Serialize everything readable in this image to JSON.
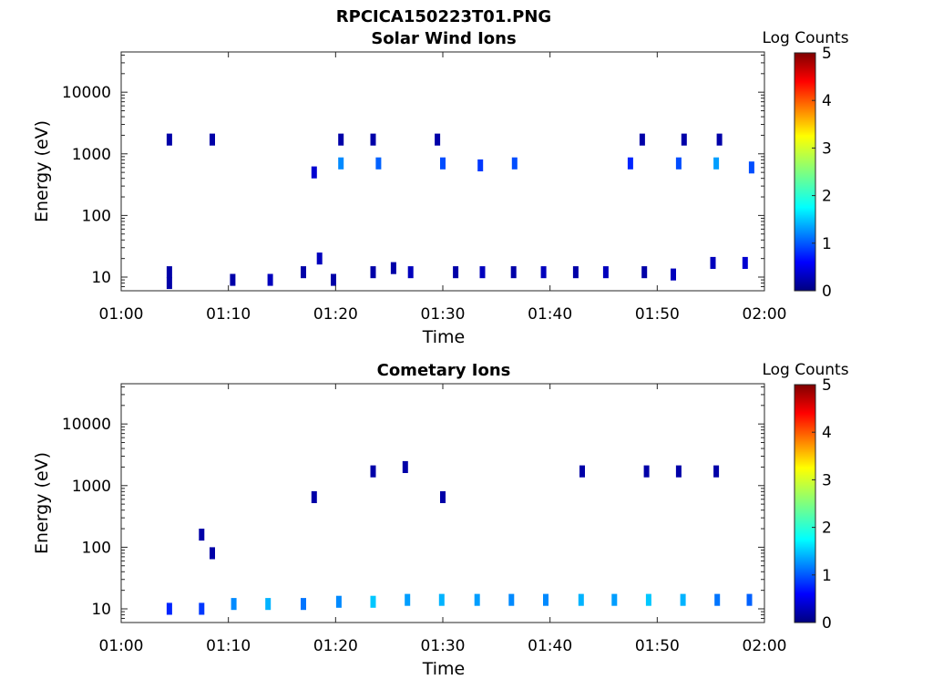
{
  "figure_title": "RPCICA150223T01.PNG",
  "chart_data": [
    {
      "type": "heatmap",
      "title": "Solar Wind Ions",
      "xlabel": "Time",
      "ylabel": "Energy (eV)",
      "xlim": [
        "01:00",
        "02:00"
      ],
      "xtick_labels": [
        "01:00",
        "01:10",
        "01:20",
        "01:30",
        "01:40",
        "01:50",
        "02:00"
      ],
      "ylim": [
        6,
        45000
      ],
      "yscale": "log",
      "ytick_values": [
        10,
        100,
        1000,
        10000
      ],
      "ytick_labels": [
        "10",
        "100",
        "1000",
        "10000"
      ],
      "colorbar": {
        "label": "Log Counts",
        "range": [
          0,
          5
        ],
        "tick_labels": [
          "0",
          "1",
          "2",
          "3",
          "4",
          "5"
        ],
        "colormap": "jet"
      },
      "cells": [
        {
          "t": 4.5,
          "e": 1700,
          "v": 0.2
        },
        {
          "t": 8.5,
          "e": 1700,
          "v": 0.2
        },
        {
          "t": 4.5,
          "e": 12,
          "v": 0.2
        },
        {
          "t": 4.5,
          "e": 8,
          "v": 0.2
        },
        {
          "t": 10.4,
          "e": 9,
          "v": 0.2
        },
        {
          "t": 13.9,
          "e": 9,
          "v": 0.3
        },
        {
          "t": 17.0,
          "e": 12,
          "v": 0.2
        },
        {
          "t": 18.5,
          "e": 20,
          "v": 0.3
        },
        {
          "t": 19.8,
          "e": 9,
          "v": 0.2
        },
        {
          "t": 23.5,
          "e": 12,
          "v": 0.2
        },
        {
          "t": 25.4,
          "e": 14,
          "v": 0.2
        },
        {
          "t": 27.0,
          "e": 12,
          "v": 0.3
        },
        {
          "t": 31.2,
          "e": 12,
          "v": 0.2
        },
        {
          "t": 33.7,
          "e": 12,
          "v": 0.3
        },
        {
          "t": 36.6,
          "e": 12,
          "v": 0.2
        },
        {
          "t": 39.4,
          "e": 12,
          "v": 0.3
        },
        {
          "t": 42.4,
          "e": 12,
          "v": 0.2
        },
        {
          "t": 45.2,
          "e": 12,
          "v": 0.3
        },
        {
          "t": 48.8,
          "e": 12,
          "v": 0.2
        },
        {
          "t": 51.5,
          "e": 11,
          "v": 0.3
        },
        {
          "t": 55.2,
          "e": 17,
          "v": 0.3
        },
        {
          "t": 58.2,
          "e": 17,
          "v": 0.4
        },
        {
          "t": 20.5,
          "e": 700,
          "v": 1.3
        },
        {
          "t": 24.0,
          "e": 700,
          "v": 1.1
        },
        {
          "t": 30.0,
          "e": 700,
          "v": 1.0
        },
        {
          "t": 33.5,
          "e": 650,
          "v": 0.9
        },
        {
          "t": 36.7,
          "e": 700,
          "v": 1.0
        },
        {
          "t": 47.5,
          "e": 700,
          "v": 0.8
        },
        {
          "t": 52.0,
          "e": 700,
          "v": 1.0
        },
        {
          "t": 55.5,
          "e": 700,
          "v": 1.4
        },
        {
          "t": 58.8,
          "e": 600,
          "v": 1.0
        },
        {
          "t": 18.0,
          "e": 500,
          "v": 0.4
        },
        {
          "t": 20.5,
          "e": 1700,
          "v": 0.2
        },
        {
          "t": 23.5,
          "e": 1700,
          "v": 0.2
        },
        {
          "t": 29.5,
          "e": 1700,
          "v": 0.2
        },
        {
          "t": 48.6,
          "e": 1700,
          "v": 0.2
        },
        {
          "t": 52.5,
          "e": 1700,
          "v": 0.2
        },
        {
          "t": 55.8,
          "e": 1700,
          "v": 0.2
        }
      ]
    },
    {
      "type": "heatmap",
      "title": "Cometary Ions",
      "xlabel": "Time",
      "ylabel": "Energy (eV)",
      "xlim": [
        "01:00",
        "02:00"
      ],
      "xtick_labels": [
        "01:00",
        "01:10",
        "01:20",
        "01:30",
        "01:40",
        "01:50",
        "02:00"
      ],
      "ylim": [
        6,
        45000
      ],
      "yscale": "log",
      "ytick_values": [
        10,
        100,
        1000,
        10000
      ],
      "ytick_labels": [
        "10",
        "100",
        "1000",
        "10000"
      ],
      "colorbar": {
        "label": "Log Counts",
        "range": [
          0,
          5
        ],
        "tick_labels": [
          "0",
          "1",
          "2",
          "3",
          "4",
          "5"
        ],
        "colormap": "jet"
      },
      "cells": [
        {
          "t": 4.5,
          "e": 10,
          "v": 0.8
        },
        {
          "t": 7.5,
          "e": 10,
          "v": 0.9
        },
        {
          "t": 10.5,
          "e": 12,
          "v": 1.3
        },
        {
          "t": 13.7,
          "e": 12,
          "v": 1.5
        },
        {
          "t": 17.0,
          "e": 12,
          "v": 1.2
        },
        {
          "t": 20.3,
          "e": 13,
          "v": 1.3
        },
        {
          "t": 23.5,
          "e": 13,
          "v": 1.6
        },
        {
          "t": 26.7,
          "e": 14,
          "v": 1.4
        },
        {
          "t": 29.9,
          "e": 14,
          "v": 1.5
        },
        {
          "t": 33.2,
          "e": 14,
          "v": 1.4
        },
        {
          "t": 36.4,
          "e": 14,
          "v": 1.3
        },
        {
          "t": 39.6,
          "e": 14,
          "v": 1.3
        },
        {
          "t": 42.9,
          "e": 14,
          "v": 1.5
        },
        {
          "t": 46.0,
          "e": 14,
          "v": 1.4
        },
        {
          "t": 49.2,
          "e": 14,
          "v": 1.6
        },
        {
          "t": 52.4,
          "e": 14,
          "v": 1.5
        },
        {
          "t": 55.6,
          "e": 14,
          "v": 1.2
        },
        {
          "t": 58.6,
          "e": 14,
          "v": 1.1
        },
        {
          "t": 8.5,
          "e": 80,
          "v": 0.2
        },
        {
          "t": 7.5,
          "e": 160,
          "v": 0.2
        },
        {
          "t": 23.5,
          "e": 1700,
          "v": 0.2
        },
        {
          "t": 26.5,
          "e": 2000,
          "v": 0.2
        },
        {
          "t": 43.0,
          "e": 1700,
          "v": 0.2
        },
        {
          "t": 49.0,
          "e": 1700,
          "v": 0.2
        },
        {
          "t": 52.0,
          "e": 1700,
          "v": 0.2
        },
        {
          "t": 55.5,
          "e": 1700,
          "v": 0.2
        },
        {
          "t": 18.0,
          "e": 650,
          "v": 0.2
        },
        {
          "t": 30.0,
          "e": 650,
          "v": 0.2
        }
      ]
    }
  ]
}
